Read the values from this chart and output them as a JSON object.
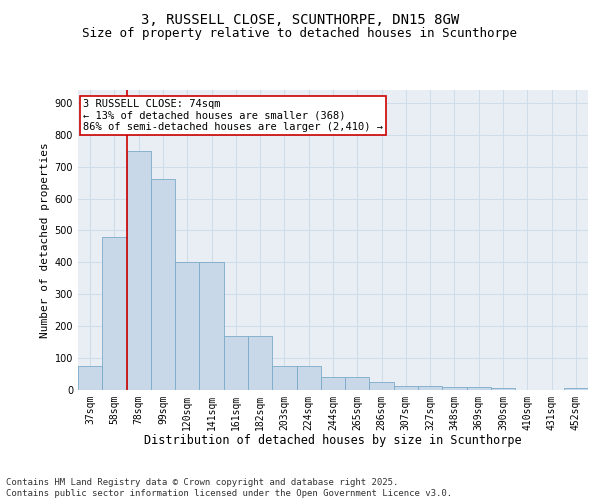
{
  "title1": "3, RUSSELL CLOSE, SCUNTHORPE, DN15 8GW",
  "title2": "Size of property relative to detached houses in Scunthorpe",
  "xlabel": "Distribution of detached houses by size in Scunthorpe",
  "ylabel": "Number of detached properties",
  "categories": [
    "37sqm",
    "58sqm",
    "78sqm",
    "99sqm",
    "120sqm",
    "141sqm",
    "161sqm",
    "182sqm",
    "203sqm",
    "224sqm",
    "244sqm",
    "265sqm",
    "286sqm",
    "307sqm",
    "327sqm",
    "348sqm",
    "369sqm",
    "390sqm",
    "410sqm",
    "431sqm",
    "452sqm"
  ],
  "values": [
    75,
    480,
    750,
    660,
    400,
    400,
    170,
    170,
    75,
    75,
    40,
    40,
    25,
    12,
    12,
    10,
    8,
    5,
    0,
    0,
    5
  ],
  "bar_color": "#c8d8e8",
  "bar_edge_color": "#7aaac8",
  "vline_x_index": 1.5,
  "vline_color": "#cc0000",
  "annotation_text": "3 RUSSELL CLOSE: 74sqm\n← 13% of detached houses are smaller (368)\n86% of semi-detached houses are larger (2,410) →",
  "annotation_box_color": "#ffffff",
  "annotation_box_edge": "#cc0000",
  "ylim": [
    0,
    940
  ],
  "yticks": [
    0,
    100,
    200,
    300,
    400,
    500,
    600,
    700,
    800,
    900
  ],
  "grid_color": "#d0dce8",
  "bg_color": "#e8eef4",
  "footer": "Contains HM Land Registry data © Crown copyright and database right 2025.\nContains public sector information licensed under the Open Government Licence v3.0.",
  "title1_fontsize": 10,
  "title2_fontsize": 9,
  "xlabel_fontsize": 8.5,
  "ylabel_fontsize": 8,
  "tick_fontsize": 7,
  "annotation_fontsize": 7.5,
  "footer_fontsize": 6.5
}
